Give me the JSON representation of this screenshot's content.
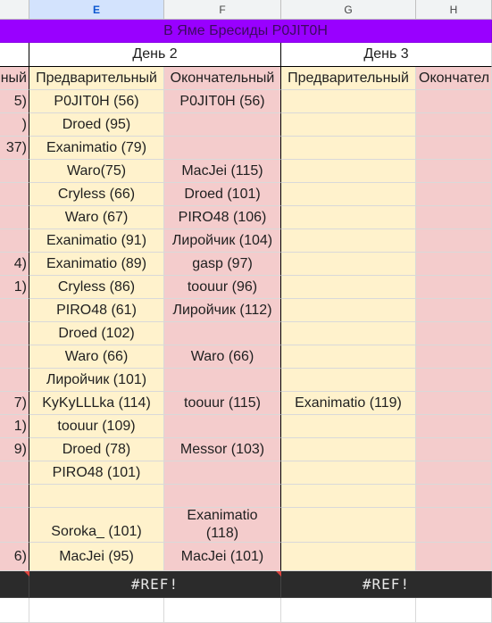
{
  "columns": [
    "E",
    "F",
    "G",
    "H"
  ],
  "selected_column": "E",
  "title": "В Яме Бресиды P0JIT0H",
  "days": [
    "День 2",
    "День 3"
  ],
  "headers": {
    "prelim_d_partial": "ный",
    "e": "Предварительный",
    "f": "Окончательный",
    "g": "Предварительный",
    "h": "Окончател"
  },
  "rows": [
    {
      "d": "5)",
      "e": "P0JIT0H (56)",
      "f": "P0JIT0H (56)",
      "g": "",
      "h": ""
    },
    {
      "d": ")",
      "e": "Droed (95)",
      "f": "",
      "g": "",
      "h": ""
    },
    {
      "d": "37)",
      "e": "Exanimatio (79)",
      "f": "",
      "g": "",
      "h": ""
    },
    {
      "d": "",
      "e": "Waro(75)",
      "f": "MacJei (115)",
      "g": "",
      "h": ""
    },
    {
      "d": "",
      "e": "Cryless (66)",
      "f": "Droed (101)",
      "g": "",
      "h": ""
    },
    {
      "d": "",
      "e": "Waro (67)",
      "f": "PIRO48 (106)",
      "g": "",
      "h": ""
    },
    {
      "d": "",
      "e": "Exanimatio (91)",
      "f": "Лиройчик (104)",
      "g": "",
      "h": ""
    },
    {
      "d": "4)",
      "e": "Exanimatio (89)",
      "f": "gasp (97)",
      "g": "",
      "h": ""
    },
    {
      "d": "1)",
      "e": "Cryless (86)",
      "f": "toouur (96)",
      "g": "",
      "h": ""
    },
    {
      "d": "",
      "e": "PIRO48 (61)",
      "f": "Лиройчик (112)",
      "g": "",
      "h": ""
    },
    {
      "d": "",
      "e": "Droed (102)",
      "f": "",
      "g": "",
      "h": ""
    },
    {
      "d": "",
      "e": "Waro (66)",
      "f": "Waro (66)",
      "g": "",
      "h": ""
    },
    {
      "d": "",
      "e": "Лиройчик (101)",
      "f": "",
      "g": "",
      "h": ""
    },
    {
      "d": "7)",
      "e": "KyKyLLLka (114)",
      "f": "toouur (115)",
      "g": "Exanimatio (119)",
      "h": ""
    },
    {
      "d": "1)",
      "e": "toouur (109)",
      "f": "",
      "g": "",
      "h": ""
    },
    {
      "d": "9)",
      "e": "Droed (78)",
      "f": "Messor (103)",
      "g": "",
      "h": ""
    },
    {
      "d": "",
      "e": "PIRO48 (101)",
      "f": "",
      "g": "",
      "h": ""
    },
    {
      "d": "",
      "e": "",
      "f": "",
      "g": "",
      "h": ""
    },
    {
      "d": "",
      "e": "Soroka_ (101)",
      "f_line1": "Exanimatio",
      "f_line2": "(118)",
      "g": "",
      "h": "",
      "tall": true
    },
    {
      "d": "6)",
      "e": "MacJei (95)",
      "f": "MacJei (101)",
      "g": "",
      "h": ""
    }
  ],
  "ref_error": "#REF!",
  "colors": {
    "purple": "#9900ff",
    "yellow": "#fff2cc",
    "pink": "#f4cccc",
    "dark": "#2b2b2b",
    "error_corner": "#e0443e"
  }
}
